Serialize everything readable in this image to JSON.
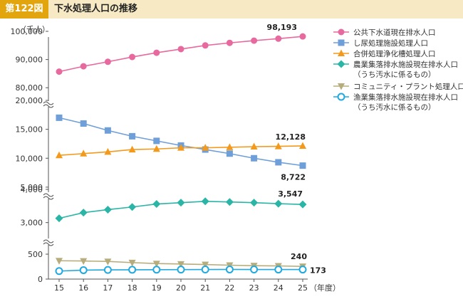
{
  "header": {
    "figure_label": "第122図",
    "title": "下水処理人口の推移"
  },
  "chart_data": {
    "type": "line",
    "y_unit": "（千人）",
    "x_unit": "（年度）",
    "categories": [
      "15",
      "16",
      "17",
      "18",
      "19",
      "20",
      "21",
      "22",
      "23",
      "24",
      "25"
    ],
    "panels": [
      {
        "ylim": [
          75000,
          100000
        ],
        "ticks": [
          80000,
          90000,
          100000
        ],
        "tick_labels": [
          "80,000",
          "90,000",
          "100,000"
        ]
      },
      {
        "ylim": [
          4000,
          20000
        ],
        "ticks": [
          5000,
          10000,
          15000,
          20000
        ],
        "tick_labels": [
          "5,000",
          "10,000",
          "15,000",
          "20,000"
        ]
      },
      {
        "ylim": [
          2500,
          4000
        ],
        "ticks": [
          3000,
          4000
        ],
        "tick_labels": [
          "3,000",
          "4,000"
        ]
      },
      {
        "ylim": [
          0,
          500
        ],
        "ticks": [
          0,
          500
        ],
        "tick_labels": [
          "0",
          "500"
        ]
      }
    ],
    "series": [
      {
        "name": "公共下水道現在排水人口",
        "color": "#e8699e",
        "marker": "circle",
        "panel": 0,
        "values": [
          85700,
          87600,
          89200,
          90900,
          92400,
          93700,
          95000,
          95900,
          96700,
          97400,
          98193
        ],
        "end_label": "98,193"
      },
      {
        "name": "し尿処理施設処理人口",
        "color": "#6f9fd8",
        "marker": "square",
        "panel": 1,
        "values": [
          17000,
          16000,
          14800,
          13800,
          13000,
          12200,
          11500,
          10800,
          10000,
          9300,
          8722
        ],
        "end_label": "8,722"
      },
      {
        "name": "合併処理浄化槽処理人口",
        "color": "#f39a1d",
        "marker": "triangle",
        "panel": 1,
        "values": [
          10500,
          10800,
          11100,
          11500,
          11600,
          11800,
          11800,
          11900,
          12000,
          12050,
          12128
        ],
        "end_label": "12,128"
      },
      {
        "name": "農業集落排水施設現在排水人口",
        "name2": "（うち汚水に係るもの）",
        "color": "#2bb5a6",
        "marker": "diamond",
        "panel": 2,
        "values": [
          3130,
          3300,
          3390,
          3470,
          3560,
          3600,
          3640,
          3620,
          3600,
          3570,
          3547
        ],
        "end_label": "3,547"
      },
      {
        "name": "コミュニティ・プラント処理人口",
        "color": "#b7ad7c",
        "marker": "triangle-down",
        "panel": 3,
        "values": [
          360,
          355,
          345,
          320,
          300,
          290,
          280,
          265,
          255,
          250,
          240
        ],
        "end_label": "240"
      },
      {
        "name": "漁業集落排水施設現在排水人口",
        "name2": "（うち汚水に係るもの）",
        "color": "#1fa9e0",
        "marker": "circle-open",
        "panel": 3,
        "values": [
          140,
          160,
          165,
          168,
          170,
          172,
          174,
          175,
          174,
          173,
          173
        ],
        "end_label": "173"
      }
    ]
  }
}
